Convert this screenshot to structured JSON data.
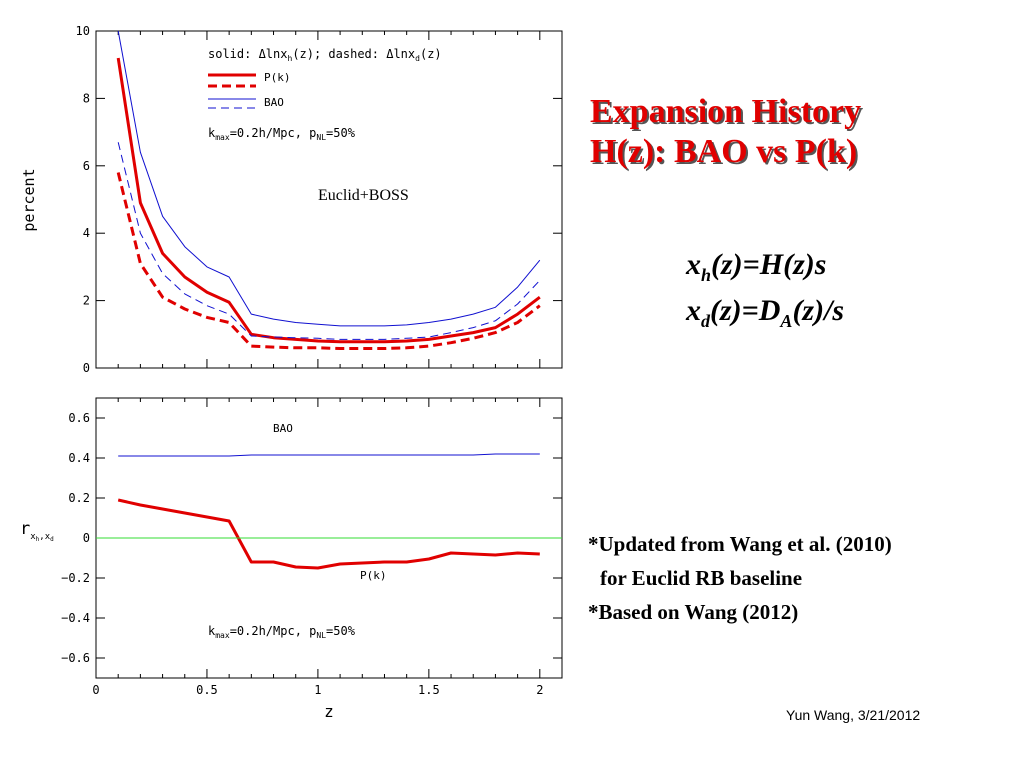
{
  "slide": {
    "title_line1": "Expansion History",
    "title_line2": "H(z): BAO vs P(k)",
    "formula1": {
      "x": "x",
      "sub": "h",
      "rest": "(z)=H(z)s"
    },
    "formula2": {
      "x": "x",
      "sub": "d",
      "mid": "(z)=D",
      "sub2": "A",
      "rest": "(z)/s"
    },
    "note1": "*Updated from Wang et al. (2010)",
    "note2": "for Euclid RB baseline",
    "note3": "*Based on Wang (2012)",
    "credit": "Yun Wang, 3/21/2012"
  },
  "colors": {
    "pk": "#e00000",
    "bao": "#1010d0",
    "zero_line": "#33dd33",
    "title": "#e00000"
  },
  "chart_data": [
    {
      "type": "line",
      "ylabel": "percent",
      "xlabel": "",
      "xlim": [
        0,
        2.1
      ],
      "ylim": [
        0,
        10
      ],
      "x_ticks": [
        0,
        0.5,
        1,
        1.5,
        2
      ],
      "y_ticks": [
        0,
        2,
        4,
        6,
        8,
        10
      ],
      "y_tick_labels": [
        "0",
        "2",
        "4",
        "6",
        "8",
        "10"
      ],
      "legend_header": "solid: Δlnx_h(z); dashed: Δlnx_d(z)",
      "legend": [
        "P(k)",
        "BAO"
      ],
      "annotations": [
        "k_max=0.2h/Mpc, p_NL=50%",
        "Euclid+BOSS"
      ],
      "series": [
        {
          "name": "P(k)",
          "color": "pk",
          "style": "solid",
          "width": 3,
          "x": [
            0.1,
            0.2,
            0.3,
            0.4,
            0.5,
            0.6,
            0.7,
            0.8,
            0.9,
            1.0,
            1.1,
            1.2,
            1.3,
            1.4,
            1.5,
            1.6,
            1.7,
            1.8,
            1.9,
            2.0
          ],
          "y": [
            9.2,
            4.9,
            3.4,
            2.7,
            2.25,
            1.95,
            1.0,
            0.9,
            0.85,
            0.8,
            0.78,
            0.78,
            0.78,
            0.8,
            0.85,
            0.95,
            1.05,
            1.2,
            1.6,
            2.1
          ]
        },
        {
          "name": "P(k)",
          "color": "pk",
          "style": "dashed",
          "width": 3,
          "x": [
            0.1,
            0.2,
            0.3,
            0.4,
            0.5,
            0.6,
            0.7,
            0.8,
            0.9,
            1.0,
            1.1,
            1.2,
            1.3,
            1.4,
            1.5,
            1.6,
            1.7,
            1.8,
            1.9,
            2.0
          ],
          "y": [
            5.8,
            3.1,
            2.1,
            1.75,
            1.5,
            1.35,
            0.65,
            0.62,
            0.6,
            0.6,
            0.58,
            0.58,
            0.58,
            0.6,
            0.65,
            0.75,
            0.88,
            1.05,
            1.35,
            1.85
          ]
        },
        {
          "name": "BAO",
          "color": "bao",
          "style": "solid",
          "width": 1,
          "x": [
            0.1,
            0.2,
            0.3,
            0.4,
            0.5,
            0.6,
            0.7,
            0.8,
            0.9,
            1.0,
            1.1,
            1.2,
            1.3,
            1.4,
            1.5,
            1.6,
            1.7,
            1.8,
            1.9,
            2.0
          ],
          "y": [
            10.4,
            6.4,
            4.5,
            3.6,
            3.0,
            2.7,
            1.6,
            1.45,
            1.35,
            1.3,
            1.25,
            1.25,
            1.25,
            1.28,
            1.35,
            1.45,
            1.6,
            1.8,
            2.4,
            3.2
          ]
        },
        {
          "name": "BAO",
          "color": "bao",
          "style": "dashed",
          "width": 1,
          "x": [
            0.1,
            0.2,
            0.3,
            0.4,
            0.5,
            0.6,
            0.7,
            0.8,
            0.9,
            1.0,
            1.1,
            1.2,
            1.3,
            1.4,
            1.5,
            1.6,
            1.7,
            1.8,
            1.9,
            2.0
          ],
          "y": [
            6.7,
            4.0,
            2.8,
            2.2,
            1.85,
            1.6,
            0.95,
            0.92,
            0.9,
            0.88,
            0.85,
            0.85,
            0.85,
            0.88,
            0.92,
            1.05,
            1.2,
            1.4,
            1.9,
            2.6
          ]
        }
      ]
    },
    {
      "type": "line",
      "ylabel": "r_{x_h,x_d}",
      "xlabel": "z",
      "xlim": [
        0,
        2.1
      ],
      "ylim": [
        -0.7,
        0.7
      ],
      "x_ticks": [
        0,
        0.5,
        1,
        1.5,
        2
      ],
      "x_tick_labels": [
        "0",
        "0.5",
        "1",
        "1.5",
        "2"
      ],
      "y_ticks": [
        -0.6,
        -0.4,
        -0.2,
        0,
        0.2,
        0.4,
        0.6
      ],
      "y_tick_labels": [
        "−0.6",
        "−0.4",
        "−0.2",
        "0",
        "0.2",
        "0.4",
        "0.6"
      ],
      "annotations": [
        "BAO",
        "P(k)",
        "k_max=0.2h/Mpc, p_NL=50%"
      ],
      "series": [
        {
          "name": "BAO",
          "color": "bao",
          "style": "solid",
          "width": 1,
          "x": [
            0.1,
            0.2,
            0.3,
            0.4,
            0.5,
            0.6,
            0.7,
            0.8,
            0.9,
            1.0,
            1.1,
            1.2,
            1.3,
            1.4,
            1.5,
            1.6,
            1.7,
            1.8,
            1.9,
            2.0
          ],
          "y": [
            0.41,
            0.41,
            0.41,
            0.41,
            0.41,
            0.41,
            0.415,
            0.415,
            0.415,
            0.415,
            0.415,
            0.415,
            0.415,
            0.415,
            0.415,
            0.415,
            0.415,
            0.42,
            0.42,
            0.42
          ]
        },
        {
          "name": "P(k)",
          "color": "pk",
          "style": "solid",
          "width": 3,
          "x": [
            0.1,
            0.2,
            0.3,
            0.4,
            0.5,
            0.6,
            0.7,
            0.8,
            0.9,
            1.0,
            1.1,
            1.2,
            1.3,
            1.4,
            1.5,
            1.6,
            1.7,
            1.8,
            1.9,
            2.0
          ],
          "y": [
            0.19,
            0.165,
            0.145,
            0.125,
            0.105,
            0.085,
            -0.12,
            -0.12,
            -0.145,
            -0.15,
            -0.13,
            -0.125,
            -0.12,
            -0.12,
            -0.105,
            -0.075,
            -0.08,
            -0.085,
            -0.075,
            -0.08
          ]
        },
        {
          "name": "",
          "color": "zero_line",
          "style": "solid",
          "width": 1,
          "x": [
            0,
            2.1
          ],
          "y": [
            0,
            0
          ]
        }
      ]
    }
  ]
}
